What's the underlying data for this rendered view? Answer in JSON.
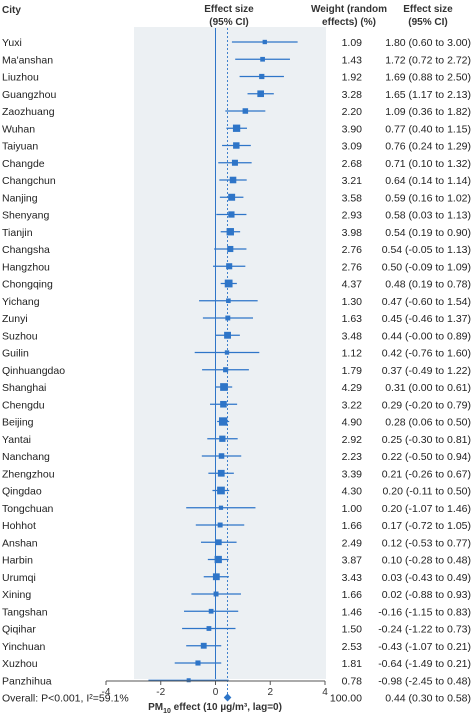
{
  "headers": {
    "city": "City",
    "effect_line1": "Effect size",
    "effect_line2": "(95% CI)",
    "weight_line1": "Weight (random",
    "weight_line2": "effects) (%)",
    "ci_line1": "Effect size",
    "ci_line2": "(95% CI)"
  },
  "chart_data": {
    "type": "forest",
    "xlim": [
      -4,
      4
    ],
    "x_ticks": [
      -4,
      -2,
      0,
      2,
      4
    ],
    "x_tick_labels": [
      "-4",
      "-2",
      "0",
      "2",
      "4"
    ],
    "xlabel_prefix": "PM",
    "xlabel_sub": "10",
    "xlabel_suffix": " effect (10 µg/m³, lag=0)",
    "colors": {
      "marker": "#2e75c8",
      "reference_line": "#2e75c8",
      "panel": "#ecf0f3"
    },
    "studies": [
      {
        "city": "Yuxi",
        "estimate": 1.8,
        "lower": 0.6,
        "upper": 3.0,
        "weight": "1.09",
        "ci_text": "1.80 (0.60 to 3.00)"
      },
      {
        "city": "Ma'anshan",
        "estimate": 1.72,
        "lower": 0.72,
        "upper": 2.72,
        "weight": "1.43",
        "ci_text": "1.72 (0.72 to 2.72)"
      },
      {
        "city": "Liuzhou",
        "estimate": 1.69,
        "lower": 0.88,
        "upper": 2.5,
        "weight": "1.92",
        "ci_text": "1.69 (0.88 to 2.50)"
      },
      {
        "city": "Guangzhou",
        "estimate": 1.65,
        "lower": 1.17,
        "upper": 2.13,
        "weight": "3.28",
        "ci_text": "1.65 (1.17 to 2.13)"
      },
      {
        "city": "Zaozhuang",
        "estimate": 1.09,
        "lower": 0.36,
        "upper": 1.82,
        "weight": "2.20",
        "ci_text": "1.09 (0.36 to 1.82)"
      },
      {
        "city": "Wuhan",
        "estimate": 0.77,
        "lower": 0.4,
        "upper": 1.15,
        "weight": "3.90",
        "ci_text": "0.77 (0.40 to 1.15)"
      },
      {
        "city": "Taiyuan",
        "estimate": 0.76,
        "lower": 0.24,
        "upper": 1.29,
        "weight": "3.09",
        "ci_text": "0.76 (0.24 to 1.29)"
      },
      {
        "city": "Changde",
        "estimate": 0.71,
        "lower": 0.1,
        "upper": 1.32,
        "weight": "2.68",
        "ci_text": "0.71 (0.10 to 1.32)"
      },
      {
        "city": "Changchun",
        "estimate": 0.64,
        "lower": 0.14,
        "upper": 1.14,
        "weight": "3.21",
        "ci_text": "0.64 (0.14 to 1.14)"
      },
      {
        "city": "Nanjing",
        "estimate": 0.59,
        "lower": 0.16,
        "upper": 1.02,
        "weight": "3.58",
        "ci_text": "0.59 (0.16 to 1.02)"
      },
      {
        "city": "Shenyang",
        "estimate": 0.58,
        "lower": 0.03,
        "upper": 1.13,
        "weight": "2.93",
        "ci_text": "0.58 (0.03 to 1.13)"
      },
      {
        "city": "Tianjin",
        "estimate": 0.54,
        "lower": 0.19,
        "upper": 0.9,
        "weight": "3.98",
        "ci_text": "0.54 (0.19 to 0.90)"
      },
      {
        "city": "Changsha",
        "estimate": 0.54,
        "lower": -0.05,
        "upper": 1.13,
        "weight": "2.76",
        "ci_text": "0.54 (-0.05 to 1.13)"
      },
      {
        "city": "Hangzhou",
        "estimate": 0.5,
        "lower": -0.09,
        "upper": 1.09,
        "weight": "2.76",
        "ci_text": "0.50 (-0.09 to 1.09)"
      },
      {
        "city": "Chongqing",
        "estimate": 0.48,
        "lower": 0.19,
        "upper": 0.78,
        "weight": "4.37",
        "ci_text": "0.48 (0.19 to 0.78)"
      },
      {
        "city": "Yichang",
        "estimate": 0.47,
        "lower": -0.6,
        "upper": 1.54,
        "weight": "1.30",
        "ci_text": "0.47 (-0.60 to 1.54)"
      },
      {
        "city": "Zunyi",
        "estimate": 0.45,
        "lower": -0.46,
        "upper": 1.37,
        "weight": "1.63",
        "ci_text": "0.45 (-0.46 to 1.37)"
      },
      {
        "city": "Suzhou",
        "estimate": 0.44,
        "lower": 0.0,
        "upper": 0.89,
        "weight": "3.48",
        "ci_text": "0.44 (-0.00 to 0.89)"
      },
      {
        "city": "Guilin",
        "estimate": 0.42,
        "lower": -0.76,
        "upper": 1.6,
        "weight": "1.12",
        "ci_text": "0.42 (-0.76 to 1.60)"
      },
      {
        "city": "Qinhuangdao",
        "estimate": 0.37,
        "lower": -0.49,
        "upper": 1.22,
        "weight": "1.79",
        "ci_text": "0.37 (-0.49 to 1.22)"
      },
      {
        "city": "Shanghai",
        "estimate": 0.31,
        "lower": 0.0,
        "upper": 0.61,
        "weight": "4.29",
        "ci_text": "0.31 (0.00 to 0.61)"
      },
      {
        "city": "Chengdu",
        "estimate": 0.29,
        "lower": -0.2,
        "upper": 0.79,
        "weight": "3.22",
        "ci_text": "0.29 (-0.20 to 0.79)"
      },
      {
        "city": "Beijing",
        "estimate": 0.28,
        "lower": 0.06,
        "upper": 0.5,
        "weight": "4.90",
        "ci_text": "0.28 (0.06 to 0.50)"
      },
      {
        "city": "Yantai",
        "estimate": 0.25,
        "lower": -0.3,
        "upper": 0.81,
        "weight": "2.92",
        "ci_text": "0.25 (-0.30 to 0.81)"
      },
      {
        "city": "Nanchang",
        "estimate": 0.22,
        "lower": -0.5,
        "upper": 0.94,
        "weight": "2.23",
        "ci_text": "0.22 (-0.50 to 0.94)"
      },
      {
        "city": "Zhengzhou",
        "estimate": 0.21,
        "lower": -0.26,
        "upper": 0.67,
        "weight": "3.39",
        "ci_text": "0.21 (-0.26 to 0.67)"
      },
      {
        "city": "Qingdao",
        "estimate": 0.2,
        "lower": -0.11,
        "upper": 0.5,
        "weight": "4.30",
        "ci_text": "0.20 (-0.11 to 0.50)"
      },
      {
        "city": "Tongchuan",
        "estimate": 0.2,
        "lower": -1.07,
        "upper": 1.46,
        "weight": "1.00",
        "ci_text": "0.20 (-1.07 to 1.46)"
      },
      {
        "city": "Hohhot",
        "estimate": 0.17,
        "lower": -0.72,
        "upper": 1.05,
        "weight": "1.66",
        "ci_text": "0.17 (-0.72 to 1.05)"
      },
      {
        "city": "Anshan",
        "estimate": 0.12,
        "lower": -0.53,
        "upper": 0.77,
        "weight": "2.49",
        "ci_text": "0.12 (-0.53 to 0.77)"
      },
      {
        "city": "Harbin",
        "estimate": 0.1,
        "lower": -0.28,
        "upper": 0.48,
        "weight": "3.87",
        "ci_text": "0.10 (-0.28 to 0.48)"
      },
      {
        "city": "Urumqi",
        "estimate": 0.03,
        "lower": -0.43,
        "upper": 0.49,
        "weight": "3.43",
        "ci_text": "0.03 (-0.43 to 0.49)"
      },
      {
        "city": "Xining",
        "estimate": 0.02,
        "lower": -0.88,
        "upper": 0.93,
        "weight": "1.66",
        "ci_text": "0.02 (-0.88 to 0.93)"
      },
      {
        "city": "Tangshan",
        "estimate": -0.16,
        "lower": -1.15,
        "upper": 0.83,
        "weight": "1.46",
        "ci_text": "-0.16 (-1.15 to 0.83)"
      },
      {
        "city": "Qiqihar",
        "estimate": -0.24,
        "lower": -1.22,
        "upper": 0.73,
        "weight": "1.50",
        "ci_text": "-0.24 (-1.22 to 0.73)"
      },
      {
        "city": "Yinchuan",
        "estimate": -0.43,
        "lower": -1.07,
        "upper": 0.21,
        "weight": "2.53",
        "ci_text": "-0.43 (-1.07 to 0.21)"
      },
      {
        "city": "Xuzhou",
        "estimate": -0.64,
        "lower": -1.49,
        "upper": 0.21,
        "weight": "1.81",
        "ci_text": "-0.64 (-1.49 to 0.21)"
      },
      {
        "city": "Panzhihua",
        "estimate": -0.98,
        "lower": -2.45,
        "upper": 0.48,
        "weight": "0.78",
        "ci_text": "-0.98 (-2.45 to 0.48)"
      }
    ],
    "overall": {
      "label": "Overall: P<0.001, I²=59.1%",
      "estimate": 0.44,
      "lower": 0.3,
      "upper": 0.58,
      "weight": "100.00",
      "ci_text": "0.44 (0.30 to 0.58)"
    }
  }
}
